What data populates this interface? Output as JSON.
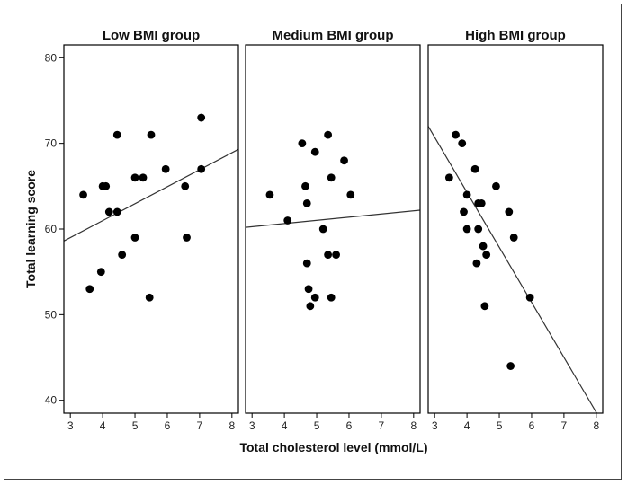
{
  "chart_data": {
    "type": "scatter",
    "layout": "faceted",
    "xlabel": "Total cholesterol level (mmol/L)",
    "ylabel": "Total learning score",
    "xlim": [
      2.8,
      8.2
    ],
    "ylim": [
      38.5,
      81.5
    ],
    "xticks": [
      3,
      4,
      5,
      6,
      7,
      8
    ],
    "yticks": [
      40,
      50,
      60,
      70,
      80
    ],
    "grid": false,
    "fit_line": true,
    "colors": {
      "points": "#000000",
      "line": "#333333",
      "frame": "#000000"
    },
    "panels": [
      {
        "title": "Low BMI group",
        "points": [
          [
            3.4,
            64
          ],
          [
            3.6,
            53
          ],
          [
            3.95,
            55
          ],
          [
            4.0,
            65
          ],
          [
            4.1,
            65
          ],
          [
            4.2,
            62
          ],
          [
            4.45,
            71
          ],
          [
            4.45,
            62
          ],
          [
            4.6,
            57
          ],
          [
            5.0,
            66
          ],
          [
            5.0,
            59
          ],
          [
            5.25,
            66
          ],
          [
            5.45,
            52
          ],
          [
            5.5,
            71
          ],
          [
            5.95,
            67
          ],
          [
            6.55,
            65
          ],
          [
            6.6,
            59
          ],
          [
            7.05,
            67
          ],
          [
            7.05,
            73
          ]
        ],
        "fit": {
          "x": [
            2.8,
            8.2
          ],
          "y": [
            58.6,
            69.3
          ]
        }
      },
      {
        "title": "Medium BMI group",
        "points": [
          [
            3.55,
            64
          ],
          [
            4.1,
            61
          ],
          [
            4.55,
            70
          ],
          [
            4.65,
            65
          ],
          [
            4.7,
            63
          ],
          [
            4.7,
            56
          ],
          [
            4.75,
            53
          ],
          [
            4.8,
            51
          ],
          [
            4.95,
            69
          ],
          [
            4.95,
            52
          ],
          [
            5.2,
            60
          ],
          [
            5.35,
            71
          ],
          [
            5.35,
            57
          ],
          [
            5.45,
            66
          ],
          [
            5.45,
            52
          ],
          [
            5.6,
            57
          ],
          [
            5.85,
            68
          ],
          [
            6.05,
            64
          ]
        ],
        "fit": {
          "x": [
            2.8,
            8.2
          ],
          "y": [
            60.2,
            62.2
          ]
        }
      },
      {
        "title": "High BMI group",
        "points": [
          [
            3.45,
            66
          ],
          [
            3.65,
            71
          ],
          [
            3.85,
            70
          ],
          [
            3.9,
            62
          ],
          [
            4.0,
            64
          ],
          [
            4.0,
            60
          ],
          [
            4.25,
            67
          ],
          [
            4.3,
            56
          ],
          [
            4.35,
            60
          ],
          [
            4.35,
            63
          ],
          [
            4.45,
            63
          ],
          [
            4.5,
            58
          ],
          [
            4.55,
            51
          ],
          [
            4.6,
            57
          ],
          [
            4.9,
            65
          ],
          [
            5.3,
            62
          ],
          [
            5.35,
            44
          ],
          [
            5.45,
            59
          ],
          [
            5.95,
            52
          ]
        ],
        "fit": {
          "x": [
            2.8,
            8.2
          ],
          "y": [
            72.0,
            37.3
          ]
        }
      }
    ]
  }
}
